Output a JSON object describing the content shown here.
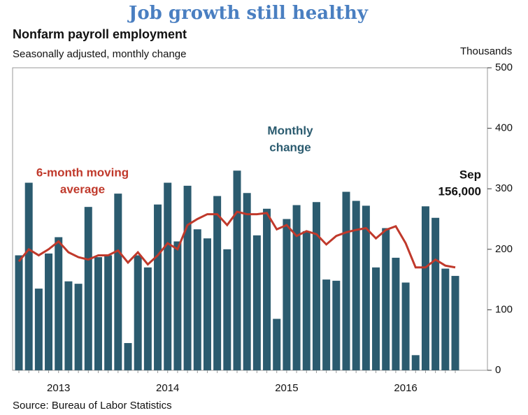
{
  "chart_data": {
    "type": "bar",
    "title": "Job growth still healthy",
    "subtitle": "Nonfarm payroll employment",
    "subtitle2": "Seasonally adjusted, monthly change",
    "y_axis_label": "Thousands",
    "source": "Source: Bureau of Labor Statistics",
    "categories": [
      null,
      null,
      null,
      null,
      "2013",
      null,
      null,
      null,
      null,
      null,
      null,
      null,
      null,
      null,
      null,
      "2014",
      null,
      null,
      null,
      null,
      null,
      null,
      null,
      null,
      null,
      null,
      null,
      "2015",
      null,
      null,
      null,
      null,
      null,
      null,
      null,
      null,
      null,
      null,
      null,
      "2016",
      null,
      null,
      null,
      null,
      null
    ],
    "series": [
      {
        "name": "Monthly change",
        "color": "#2b5b6f",
        "values": [
          190,
          310,
          135,
          193,
          220,
          147,
          143,
          270,
          187,
          190,
          292,
          45,
          190,
          170,
          274,
          310,
          213,
          305,
          233,
          218,
          288,
          200,
          330,
          293,
          223,
          267,
          85,
          250,
          273,
          230,
          278,
          150,
          148,
          295,
          280,
          272,
          170,
          235,
          186,
          145,
          25,
          271,
          252,
          168,
          156
        ]
      },
      {
        "name": "6-month moving average",
        "color": "#c0392b",
        "values": [
          180,
          200,
          190,
          200,
          213,
          195,
          187,
          183,
          190,
          190,
          198,
          178,
          195,
          175,
          190,
          210,
          200,
          240,
          250,
          258,
          258,
          240,
          262,
          258,
          258,
          260,
          233,
          240,
          222,
          230,
          225,
          208,
          222,
          228,
          232,
          235,
          218,
          232,
          238,
          210,
          170,
          170,
          183,
          173,
          170
        ]
      }
    ],
    "annotations": [
      {
        "lines": [
          "Monthly",
          "change"
        ],
        "color": "#2b5b6f"
      },
      {
        "lines": [
          "6-month moving",
          "average"
        ],
        "color": "#c0392b"
      },
      {
        "lines": [
          "Sep",
          "156,000"
        ],
        "color": "#111111"
      }
    ],
    "ylim": [
      0,
      500
    ],
    "yticks": [
      0,
      100,
      200,
      300,
      400,
      500
    ]
  }
}
